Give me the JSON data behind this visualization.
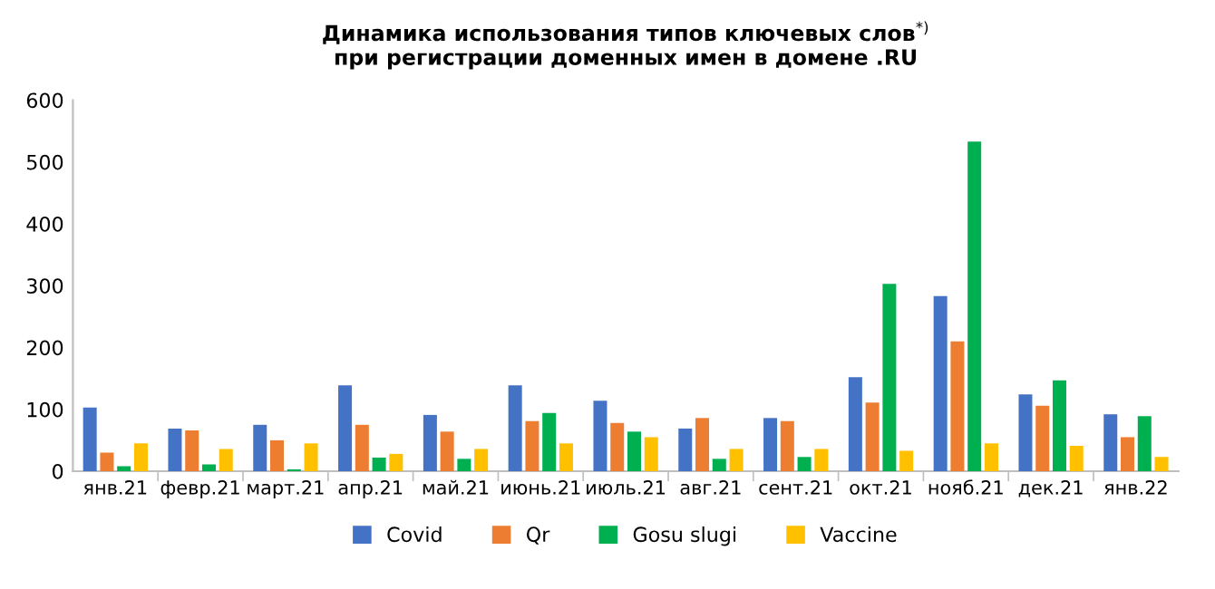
{
  "chart_data": {
    "type": "bar",
    "title": "Динамика использования типов ключевых слов$^{*)}$\nпри регистрации доменных имен в домене .RU",
    "categories": [
      "янв.21",
      "февр.21",
      "март.21",
      "апр.21",
      "май.21",
      "июнь.21",
      "июль.21",
      "авг.21",
      "сент.21",
      "окт.21",
      "нояб.21",
      "дек.21",
      "янв.22"
    ],
    "series": [
      {
        "name": "Covid",
        "color": "#4472c4",
        "values": [
          103,
          69,
          75,
          139,
          91,
          139,
          114,
          69,
          86,
          152,
          283,
          124,
          92
        ]
      },
      {
        "name": "Qr",
        "color": "#ed7d31",
        "values": [
          30,
          66,
          50,
          75,
          64,
          81,
          78,
          86,
          81,
          111,
          210,
          106,
          55
        ]
      },
      {
        "name": "Gosu slugi",
        "color": "#00b050",
        "values": [
          8,
          11,
          3,
          22,
          20,
          94,
          64,
          20,
          23,
          303,
          533,
          147,
          89
        ]
      },
      {
        "name": "Vaccine",
        "color": "#ffc000",
        "values": [
          45,
          36,
          45,
          28,
          36,
          45,
          55,
          36,
          36,
          33,
          45,
          41,
          23
        ]
      }
    ],
    "ylim": [
      0,
      600
    ],
    "yticks": [
      0,
      100,
      200,
      300,
      400,
      500,
      600
    ],
    "grid": false,
    "legend": "bottom"
  }
}
